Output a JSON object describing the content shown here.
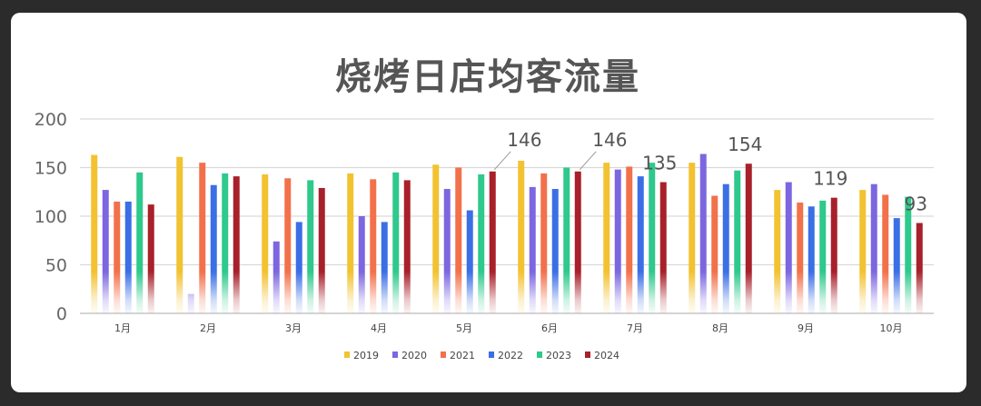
{
  "chart_data": {
    "type": "bar",
    "title": "烧烤日店均客流量",
    "categories": [
      "1月",
      "2月",
      "3月",
      "4月",
      "5月",
      "6月",
      "7月",
      "8月",
      "9月",
      "10月"
    ],
    "ylim": [
      0,
      200
    ],
    "yticks": [
      0,
      50,
      100,
      150,
      200
    ],
    "grid": true,
    "legend_position": "bottom",
    "series": [
      {
        "name": "2019",
        "color": "#F2C230",
        "values": [
          163,
          161,
          143,
          144,
          153,
          157,
          155,
          155,
          127,
          127
        ]
      },
      {
        "name": "2020",
        "color": "#7C67E0",
        "values": [
          127,
          20,
          74,
          100,
          128,
          130,
          148,
          164,
          135,
          133
        ]
      },
      {
        "name": "2021",
        "color": "#F2714B",
        "values": [
          115,
          155,
          139,
          138,
          150,
          144,
          151,
          121,
          114,
          122
        ]
      },
      {
        "name": "2022",
        "color": "#3A6FE6",
        "values": [
          115,
          132,
          94,
          94,
          106,
          128,
          141,
          133,
          110,
          98
        ]
      },
      {
        "name": "2023",
        "color": "#2EC98C",
        "values": [
          145,
          144,
          137,
          145,
          143,
          150,
          155,
          147,
          116,
          120
        ]
      },
      {
        "name": "2024",
        "color": "#A8202A",
        "values": [
          112,
          141,
          129,
          137,
          146,
          146,
          135,
          154,
          119,
          93
        ]
      }
    ],
    "annotations": [
      {
        "month_index": 4,
        "series_index": 5,
        "text": "146",
        "leader": true
      },
      {
        "month_index": 5,
        "series_index": 5,
        "text": "146",
        "leader": true
      },
      {
        "month_index": 6,
        "series_index": 5,
        "text": "135",
        "leader": false
      },
      {
        "month_index": 7,
        "series_index": 5,
        "text": "154",
        "leader": false
      },
      {
        "month_index": 8,
        "series_index": 5,
        "text": "119",
        "leader": false
      },
      {
        "month_index": 9,
        "series_index": 5,
        "text": "93",
        "leader": false
      }
    ]
  }
}
